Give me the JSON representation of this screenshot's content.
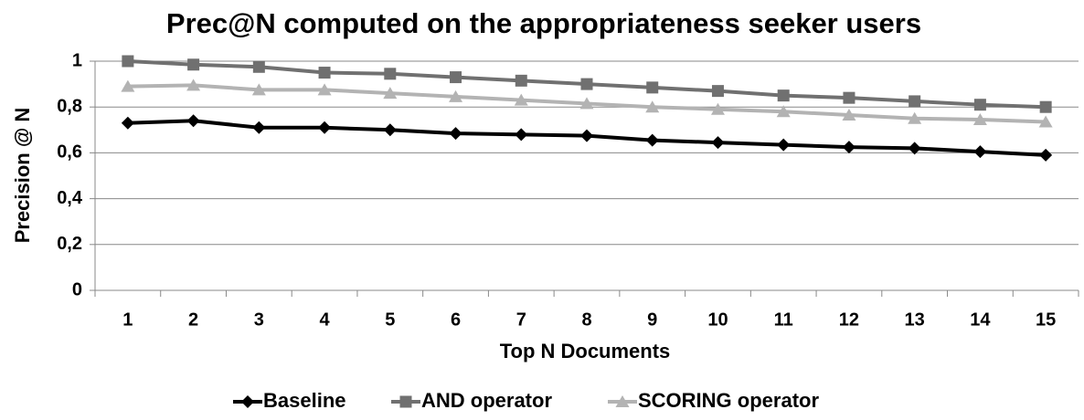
{
  "chart_data": {
    "type": "line",
    "title": "Prec@N computed on the appropriateness seeker users",
    "xlabel": "Top N Documents",
    "ylabel": "Precision @ N",
    "categories": [
      "1",
      "2",
      "3",
      "4",
      "5",
      "6",
      "7",
      "8",
      "9",
      "10",
      "11",
      "12",
      "13",
      "14",
      "15"
    ],
    "series": [
      {
        "name": "Baseline",
        "color": "#000000",
        "marker": "diamond",
        "values": [
          0.73,
          0.74,
          0.71,
          0.71,
          0.7,
          0.685,
          0.68,
          0.675,
          0.655,
          0.645,
          0.635,
          0.625,
          0.62,
          0.605,
          0.59
        ]
      },
      {
        "name": "AND operator",
        "color": "#707070",
        "marker": "square",
        "values": [
          1.0,
          0.985,
          0.975,
          0.95,
          0.945,
          0.93,
          0.915,
          0.9,
          0.885,
          0.87,
          0.85,
          0.84,
          0.825,
          0.81,
          0.8
        ]
      },
      {
        "name": "SCORING operator",
        "color": "#b3b3b3",
        "marker": "triangle",
        "values": [
          0.89,
          0.895,
          0.875,
          0.875,
          0.86,
          0.845,
          0.83,
          0.815,
          0.8,
          0.79,
          0.78,
          0.765,
          0.75,
          0.745,
          0.735
        ]
      }
    ],
    "ylim": [
      0,
      1
    ],
    "yticks": [
      0,
      {
        "value": 0.2,
        "label": "0,2"
      },
      {
        "value": 0.4,
        "label": "0,4"
      },
      {
        "value": 0.6,
        "label": "0,6"
      },
      {
        "value": 0.8,
        "label": "0,8"
      },
      1
    ],
    "grid": true,
    "legend": "bottom"
  }
}
